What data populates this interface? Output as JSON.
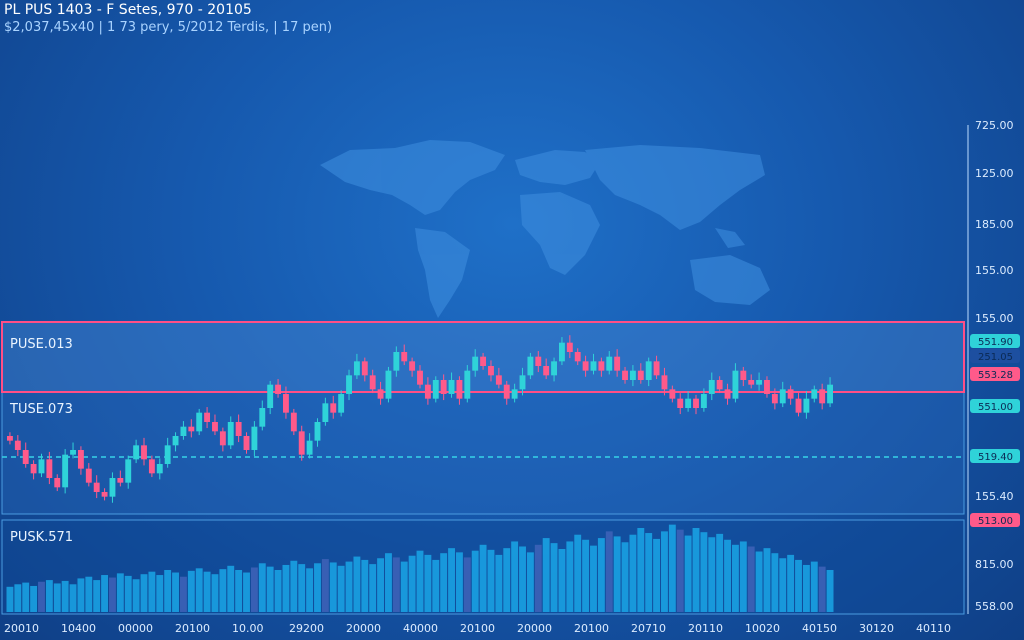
{
  "header": {
    "title": "PL PUS 1403 - F Setes, 970 - 20105",
    "subtitle": "$2,037,45x40 | 1 73 pery, 5/2012 Terdis, | 17 pen)"
  },
  "colors": {
    "up": "#2fd3d9",
    "down": "#ff5a8a",
    "highlight_border": "#ff4f86",
    "dashed_line": "#37d3e8",
    "volume": "#1aa6e6",
    "map": "#3f8fe0"
  },
  "chart_data": {
    "type": "candlestick",
    "panels": [
      {
        "name": "price-upper",
        "label": "PUSE.013"
      },
      {
        "name": "price-lower",
        "label": "TUSE.073"
      },
      {
        "name": "volume",
        "label": "PUSK.571"
      }
    ],
    "y_axis_labels": [
      "725.00",
      "125.00",
      "185.00",
      "155.00",
      "155.00",
      "155.40"
    ],
    "volume_axis_labels": [
      "815.00",
      "558.00"
    ],
    "price_tags": [
      {
        "label": "551.90",
        "color": "#2fd3d9"
      },
      {
        "label": "251.05",
        "color": "#1d4fa0"
      },
      {
        "label": "553.28",
        "color": "#ff5a8a"
      },
      {
        "label": "551.00",
        "color": "#2fd3d9"
      },
      {
        "label": "519.40",
        "color": "#2fd3d9"
      },
      {
        "label": "513.00",
        "color": "#ff5a8a"
      }
    ],
    "x_labels": [
      "20010",
      "10400",
      "00000",
      "20100",
      "10.00",
      "29200",
      "20000",
      "40000",
      "20100",
      "20000",
      "20100",
      "20710",
      "20110",
      "10020",
      "40150",
      "30120",
      "40110"
    ],
    "close": [
      488,
      486,
      483,
      481,
      484,
      480,
      478,
      485,
      486,
      482,
      479,
      477,
      476,
      480,
      479,
      484,
      487,
      484,
      481,
      483,
      487,
      489,
      491,
      490,
      494,
      492,
      490,
      487,
      492,
      489,
      486,
      491,
      495,
      500,
      498,
      494,
      490,
      485,
      488,
      492,
      496,
      494,
      498,
      502,
      505,
      502,
      499,
      497,
      503,
      507,
      505,
      503,
      500,
      497,
      501,
      498,
      501,
      497,
      503,
      506,
      504,
      502,
      500,
      497,
      499,
      502,
      506,
      504,
      502,
      505,
      509,
      507,
      505,
      503,
      505,
      503,
      506,
      503,
      501,
      503,
      501,
      505,
      502,
      499,
      497,
      495,
      497,
      495,
      498,
      501,
      499,
      497,
      503,
      501,
      500,
      501,
      498,
      496,
      499,
      497,
      494,
      497,
      499,
      496,
      500
    ],
    "volume": [
      30,
      33,
      35,
      31,
      36,
      38,
      34,
      37,
      33,
      40,
      42,
      38,
      44,
      41,
      46,
      43,
      39,
      45,
      48,
      44,
      50,
      47,
      42,
      49,
      52,
      48,
      45,
      51,
      55,
      50,
      47,
      53,
      58,
      54,
      50,
      56,
      61,
      57,
      52,
      58,
      63,
      59,
      55,
      60,
      66,
      62,
      57,
      64,
      70,
      65,
      60,
      67,
      73,
      68,
      62,
      70,
      76,
      71,
      65,
      73,
      80,
      74,
      68,
      76,
      84,
      78,
      71,
      80,
      88,
      82,
      75,
      84,
      92,
      86,
      79,
      88,
      96,
      90,
      83,
      92,
      100,
      94,
      87,
      96,
      104,
      98,
      91,
      100,
      95,
      89,
      93,
      86,
      80,
      84,
      78,
      72,
      76,
      70,
      64,
      68,
      62,
      56,
      60,
      54,
      50
    ],
    "volume_ylim": [
      0,
      100
    ]
  }
}
